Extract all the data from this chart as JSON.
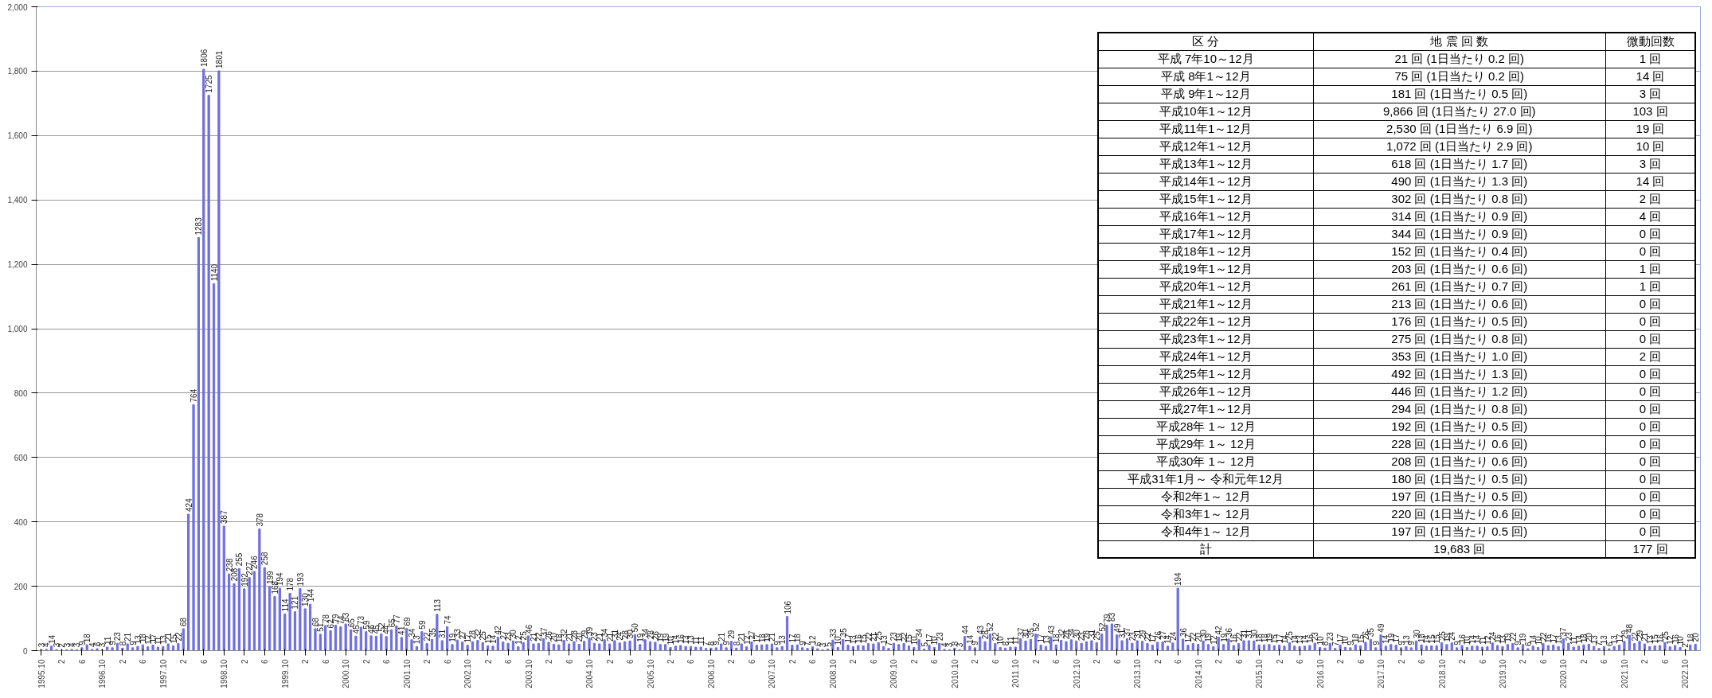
{
  "chart_data": {
    "type": "bar",
    "color": "#6f6fe0",
    "grid": "y",
    "data_labels": true,
    "ylim": [
      0,
      2000
    ],
    "yticks": [
      0,
      {
        "value": 200,
        "label": "200"
      },
      {
        "value": 400,
        "label": "400"
      },
      {
        "value": 600,
        "label": "600"
      },
      {
        "value": 800,
        "label": "800"
      },
      {
        "value": 1000,
        "label": "1,000"
      },
      {
        "value": 1200,
        "label": "1,200"
      },
      {
        "value": 1400,
        "label": "1,400"
      },
      {
        "value": 1600,
        "label": "1,600"
      },
      {
        "value": 1800,
        "label": "1,800"
      },
      {
        "value": 2000,
        "label": "2,000"
      }
    ],
    "categories": [
      "1995.10",
      null,
      null,
      null,
      "2",
      null,
      null,
      null,
      "6",
      null,
      null,
      null,
      "1996.10",
      null,
      null,
      null,
      "2",
      null,
      null,
      null,
      "6",
      null,
      null,
      null,
      "1997.10",
      null,
      null,
      null,
      "2",
      null,
      null,
      null,
      "6",
      null,
      null,
      null,
      "1998.10",
      null,
      null,
      null,
      "2",
      null,
      null,
      null,
      "6",
      null,
      null,
      null,
      "1999.10",
      null,
      null,
      null,
      "2",
      null,
      null,
      null,
      "6",
      null,
      null,
      null,
      "2000.10",
      null,
      null,
      null,
      "2",
      null,
      null,
      null,
      "6",
      null,
      null,
      null,
      "2001.10",
      null,
      null,
      null,
      "2",
      null,
      null,
      null,
      "6",
      null,
      null,
      null,
      "2002.10",
      null,
      null,
      null,
      "2",
      null,
      null,
      null,
      "6",
      null,
      null,
      null,
      "2003.10",
      null,
      null,
      null,
      "2",
      null,
      null,
      null,
      "6",
      null,
      null,
      null,
      "2004.10",
      null,
      null,
      null,
      "2",
      null,
      null,
      null,
      "6",
      null,
      null,
      null,
      "2005.10",
      null,
      null,
      null,
      "2",
      null,
      null,
      null,
      "6",
      null,
      null,
      null,
      "2006.10",
      null,
      null,
      null,
      "2",
      null,
      null,
      null,
      "6",
      null,
      null,
      null,
      "2007.10",
      null,
      null,
      null,
      "2",
      null,
      null,
      null,
      "6",
      null,
      null,
      null,
      "2008.10",
      null,
      null,
      null,
      "2",
      null,
      null,
      null,
      "6",
      null,
      null,
      null,
      "2009.10",
      null,
      null,
      null,
      "2",
      null,
      null,
      null,
      "6",
      null,
      null,
      null,
      "2010.10",
      null,
      null,
      null,
      "2",
      null,
      null,
      null,
      "6",
      null,
      null,
      null,
      "2011.10",
      null,
      null,
      null,
      "2",
      null,
      null,
      null,
      "6",
      null,
      null,
      null,
      "2012.10",
      null,
      null,
      null,
      "2",
      null,
      null,
      null,
      "6",
      null,
      null,
      null,
      "2013.10",
      null,
      null,
      null,
      "2",
      null,
      null,
      null,
      "6",
      null,
      null,
      null,
      "2014.10",
      null,
      null,
      null,
      "2",
      null,
      null,
      null,
      "6",
      null,
      null,
      null,
      "2015.10",
      null,
      null,
      null,
      "2",
      null,
      null,
      null,
      "6",
      null,
      null,
      null,
      "2016.10",
      null,
      null,
      null,
      "2",
      null,
      null,
      null,
      "6",
      null,
      null,
      null,
      "2017.10",
      null,
      null,
      null,
      "2",
      null,
      null,
      null,
      "6",
      null,
      null,
      null,
      "2018.10",
      null,
      null,
      null,
      "2",
      null,
      null,
      null,
      "6",
      null,
      null,
      null,
      "2019.10",
      null,
      null,
      null,
      "2",
      null,
      null,
      null,
      "6",
      null,
      null,
      null,
      "2020.10",
      null,
      null,
      null,
      "2",
      null,
      null,
      null,
      "6",
      null,
      null,
      null,
      "2021.10",
      null,
      null,
      null,
      "2",
      null,
      null,
      null,
      "6",
      null,
      null,
      null,
      "2022.10",
      null,
      null
    ],
    "values": [
      3,
      4,
      14,
      3,
      2,
      3,
      4,
      3,
      9,
      18,
      4,
      6,
      3,
      11,
      9,
      23,
      8,
      21,
      9,
      13,
      18,
      12,
      17,
      11,
      13,
      21,
      15,
      22,
      68,
      424,
      764,
      1283,
      1806,
      1725,
      1140,
      1801,
      387,
      238,
      208,
      255,
      192,
      227,
      246,
      378,
      258,
      199,
      168,
      194,
      114,
      178,
      121,
      193,
      130,
      144,
      68,
      51,
      78,
      62,
      79,
      74,
      83,
      65,
      45,
      73,
      59,
      46,
      45,
      52,
      44,
      65,
      77,
      41,
      69,
      34,
      13,
      59,
      22,
      35,
      113,
      31,
      74,
      19,
      33,
      27,
      17,
      28,
      32,
      25,
      15,
      14,
      42,
      27,
      23,
      30,
      12,
      25,
      46,
      21,
      22,
      37,
      26,
      20,
      18,
      32,
      21,
      28,
      20,
      29,
      39,
      23,
      21,
      34,
      21,
      31,
      24,
      28,
      30,
      50,
      19,
      34,
      28,
      26,
      19,
      19,
      10,
      14,
      16,
      13,
      13,
      11,
      11,
      7,
      8,
      9,
      21,
      9,
      29,
      8,
      21,
      12,
      27,
      17,
      18,
      19,
      21,
      9,
      13,
      106,
      17,
      18,
      9,
      7,
      12,
      6,
      3,
      5,
      33,
      10,
      35,
      17,
      13,
      16,
      15,
      22,
      21,
      25,
      13,
      7,
      23,
      19,
      22,
      15,
      10,
      34,
      5,
      17,
      10,
      23,
      4,
      3,
      8,
      3,
      44,
      14,
      9,
      43,
      28,
      52,
      22,
      10,
      8,
      11,
      11,
      37,
      30,
      35,
      52,
      17,
      13,
      43,
      18,
      32,
      28,
      34,
      30,
      23,
      28,
      31,
      25,
      52,
      79,
      83,
      49,
      31,
      37,
      23,
      31,
      29,
      22,
      17,
      26,
      27,
      14,
      24,
      194,
      36,
      17,
      22,
      20,
      30,
      19,
      12,
      42,
      19,
      36,
      16,
      22,
      31,
      31,
      30,
      18,
      18,
      19,
      15,
      17,
      14,
      25,
      14,
      13,
      14,
      16,
      23,
      10,
      8,
      23,
      7,
      17,
      10,
      9,
      18,
      15,
      26,
      35,
      9,
      49,
      14,
      19,
      17,
      9,
      13,
      9,
      30,
      18,
      14,
      15,
      15,
      25,
      19,
      24,
      9,
      16,
      10,
      14,
      14,
      11,
      12,
      24,
      16,
      13,
      19,
      22,
      9,
      19,
      6,
      14,
      10,
      22,
      16,
      17,
      13,
      37,
      23,
      11,
      14,
      18,
      20,
      13,
      7,
      13,
      6,
      13,
      17,
      29,
      48,
      22,
      29,
      21,
      13,
      15,
      16,
      25,
      12,
      16,
      10,
      2,
      18,
      20
    ],
    "annotations": [
      "区 分",
      "地 震 回 数",
      "微動回数",
      "平成 7年10～12月",
      "21 回 (1日当たり 0.2 回)",
      "1 回",
      "平成 8年1～12月",
      "75 回 (1日当たり 0.2 回)",
      "14 回",
      "平成 9年1～12月",
      "181 回 (1日当たり 0.5 回)",
      "3 回",
      "平成10年1～12月",
      "9,866 回 (1日当たり 27.0 回)",
      "103 回",
      "平成11年1～12月",
      "2,530 回 (1日当たり 6.9 回)",
      "19 回",
      "平成12年1～12月",
      "1,072 回 (1日当たり 2.9 回)",
      "10 回",
      "平成13年1～12月",
      "618 回 (1日当たり 1.7 回)",
      "3 回",
      "平成14年1～12月",
      "490 回 (1日当たり 1.3 回)",
      "14 回",
      "平成15年1～12月",
      "302 回 (1日当たり 0.8 回)",
      "2 回",
      "平成16年1～12月",
      "314 回 (1日当たり 0.9 回)",
      "4 回",
      "平成17年1～12月",
      "344 回 (1日当たり 0.9 回)",
      "0 回",
      "平成18年1～12月",
      "152 回 (1日当たり 0.4 回)",
      "0 回",
      "平成19年1～12月",
      "203 回 (1日当たり 0.6 回)",
      "1 回",
      "平成20年1～12月",
      "261 回 (1日当たり 0.7 回)",
      "1 回",
      "平成21年1～12月",
      "213 回 (1日当たり 0.6 回)",
      "0 回",
      "平成22年1～12月",
      "176 回 (1日当たり 0.5 回)",
      "0 回",
      "平成23年1～12月",
      "275 回 (1日当たり 0.8 回)",
      "0 回",
      "平成24年1～12月",
      "353 回 (1日当たり 1.0 回)",
      "2 回",
      "平成25年1～12月",
      "492 回 (1日当たり 1.3 回)",
      "0 回",
      "平成26年1～12月",
      "446 回 (1日当たり 1.2 回)",
      "0 回",
      "平成27年1～12月",
      "294 回 (1日当たり 0.8 回)",
      "0 回",
      "平成28年 1～ 12月",
      "192 回 (1日当たり 0.5 回)",
      "0 回",
      "平成29年 1～ 12月",
      "228 回 (1日当たり 0.6 回)",
      "0 回",
      "平成30年 1～ 12月",
      "208 回 (1日当たり 0.6 回)",
      "0 回",
      "平成31年1月～ 令和元年12月",
      "180 回 (1日当たり 0.5 回)",
      "0 回",
      "令和2年1～ 12月",
      "197 回 (1日当たり 0.5 回)",
      "0 回",
      "令和3年1～ 12月",
      "220 回 (1日当たり 0.6 回)",
      "0 回",
      "令和4年1～ 12月",
      "197 回 (1日当たり 0.5 回)",
      "0 回",
      "計",
      "19,683 回",
      "177 回"
    ]
  }
}
